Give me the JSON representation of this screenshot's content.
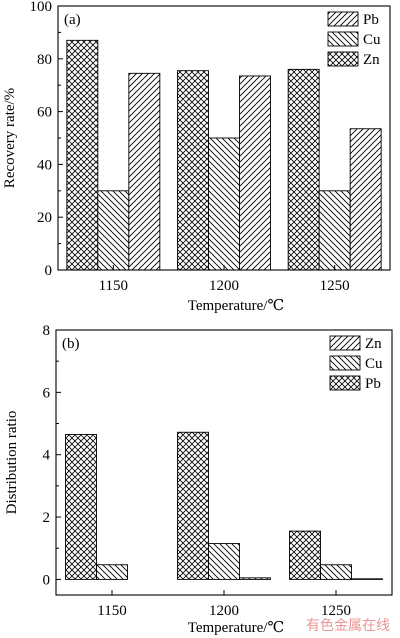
{
  "chart_data": [
    {
      "type": "bar",
      "panel_label": "(a)",
      "categories": [
        "1150",
        "1200",
        "1250"
      ],
      "series": [
        {
          "name": "Pb",
          "values": [
            74.5,
            73.5,
            53.5
          ]
        },
        {
          "name": "Cu",
          "values": [
            30,
            50,
            30
          ]
        },
        {
          "name": "Zn",
          "values": [
            87,
            75.5,
            76
          ]
        }
      ],
      "bar_order": [
        "Zn",
        "Cu",
        "Pb"
      ],
      "xlabel": "Temperature/℃",
      "ylabel": "Recovery rate/%",
      "ylim": [
        0,
        100
      ],
      "yticks": [
        "0",
        "20",
        "40",
        "60",
        "80",
        "100"
      ],
      "legend_position": "top-right",
      "patterns": {
        "Pb": "hatch-forward",
        "Cu": "hatch-back",
        "Zn": "crosshatch"
      },
      "grid": false
    },
    {
      "type": "bar",
      "panel_label": "(b)",
      "categories": [
        "1150",
        "1200",
        "1250"
      ],
      "series": [
        {
          "name": "Zn",
          "values": [
            0.0,
            0.05,
            0.02
          ]
        },
        {
          "name": "Cu",
          "values": [
            0.47,
            1.15,
            0.47
          ]
        },
        {
          "name": "Pb",
          "values": [
            4.65,
            4.72,
            1.55
          ]
        }
      ],
      "bar_order": [
        "Pb",
        "Cu",
        "Zn"
      ],
      "xlabel": "Temperature/℃",
      "ylabel": "Distribution ratio",
      "ylim": [
        -0.5,
        8
      ],
      "yticks": [
        "0",
        "2",
        "4",
        "6",
        "8"
      ],
      "legend_position": "top-right",
      "patterns": {
        "Zn": "hatch-forward",
        "Cu": "hatch-back",
        "Pb": "crosshatch"
      },
      "grid": false
    }
  ],
  "watermark": "有色金属在线"
}
